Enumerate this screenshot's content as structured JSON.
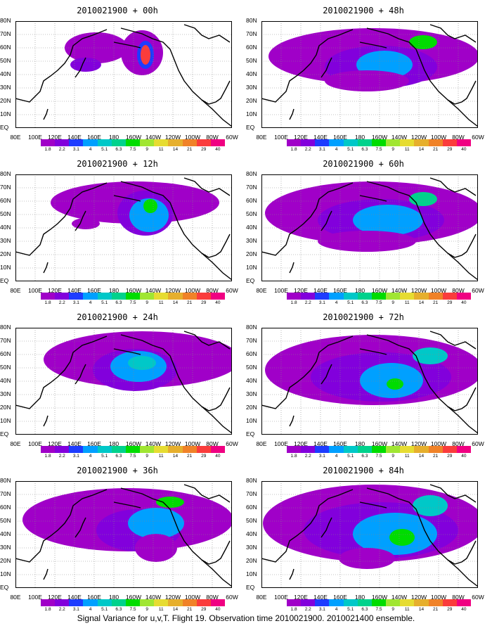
{
  "caption": "Signal Variance for u,v,T. Flight 19. Observation time 2010021900. 2010021400 ensemble.",
  "colorbar": {
    "levels": [
      "1.8",
      "2.2",
      "3.1",
      "4",
      "5.1",
      "6.3",
      "7.5",
      "9",
      "11",
      "14",
      "21",
      "29",
      "40"
    ],
    "colors": [
      "#a000c8",
      "#8200dc",
      "#1e3cff",
      "#00a0ff",
      "#00c8c8",
      "#00d28c",
      "#00dc00",
      "#a0e632",
      "#e6dc32",
      "#e6af2d",
      "#f08228",
      "#fa3c3c",
      "#f00082"
    ]
  },
  "x_ticks": [
    "80E",
    "100E",
    "120E",
    "140E",
    "160E",
    "180",
    "160W",
    "140W",
    "120W",
    "100W",
    "80W",
    "60W"
  ],
  "y_ticks": [
    "EQ",
    "10N",
    "20N",
    "30N",
    "40N",
    "50N",
    "60N",
    "70N",
    "80N"
  ],
  "chart_data": [
    {
      "type": "heatmap",
      "title": "2010021900 + 00h",
      "lon_range": [
        "80E",
        "60W"
      ],
      "lat_range": [
        "EQ",
        "80N"
      ],
      "max_level": "29"
    },
    {
      "type": "heatmap",
      "title": "2010021900 + 12h",
      "lon_range": [
        "80E",
        "60W"
      ],
      "lat_range": [
        "EQ",
        "80N"
      ],
      "max_level": "9"
    },
    {
      "type": "heatmap",
      "title": "2010021900 + 24h",
      "lon_range": [
        "80E",
        "60W"
      ],
      "lat_range": [
        "EQ",
        "80N"
      ],
      "max_level": "7.5"
    },
    {
      "type": "heatmap",
      "title": "2010021900 + 36h",
      "lon_range": [
        "80E",
        "60W"
      ],
      "lat_range": [
        "EQ",
        "80N"
      ],
      "max_level": "9"
    },
    {
      "type": "heatmap",
      "title": "2010021900 + 48h",
      "lon_range": [
        "80E",
        "60W"
      ],
      "lat_range": [
        "EQ",
        "80N"
      ],
      "max_level": "9"
    },
    {
      "type": "heatmap",
      "title": "2010021900 + 60h",
      "lon_range": [
        "80E",
        "60W"
      ],
      "lat_range": [
        "EQ",
        "80N"
      ],
      "max_level": "9"
    },
    {
      "type": "heatmap",
      "title": "2010021900 + 72h",
      "lon_range": [
        "80E",
        "60W"
      ],
      "lat_range": [
        "EQ",
        "80N"
      ],
      "max_level": "9"
    },
    {
      "type": "heatmap",
      "title": "2010021900 + 84h",
      "lon_range": [
        "80E",
        "60W"
      ],
      "lat_range": [
        "EQ",
        "80N"
      ],
      "max_level": "9"
    }
  ]
}
